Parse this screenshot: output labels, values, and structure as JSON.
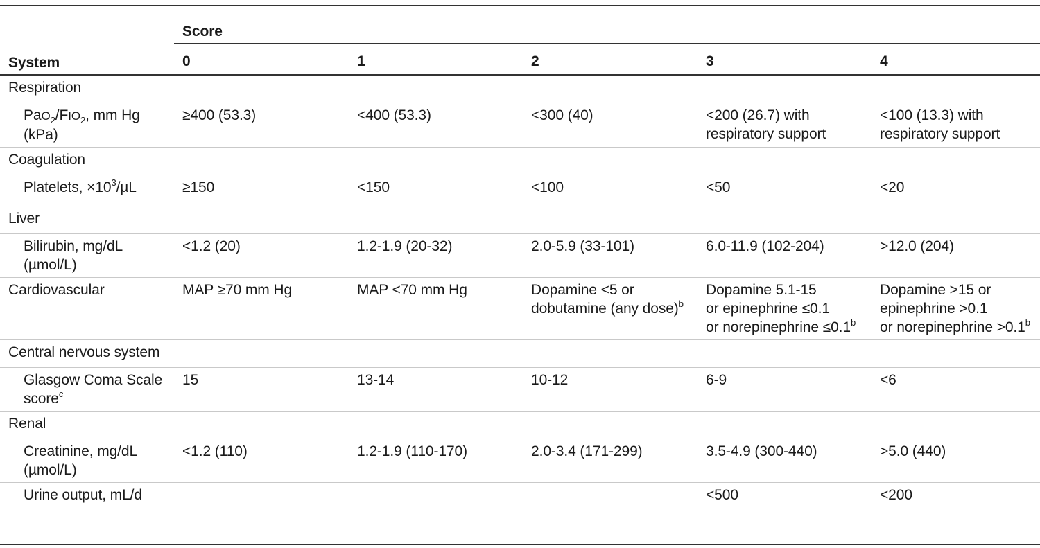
{
  "header": {
    "system": "System",
    "score": "Score",
    "score_values": [
      "0",
      "1",
      "2",
      "3",
      "4"
    ]
  },
  "respiration": {
    "group": "Respiration",
    "label_pa": "Pa",
    "label_o1": "O",
    "label_sub1": "2",
    "label_slash": "/F",
    "label_io": "IO",
    "label_sub2": "2",
    "label_tail": ", mm Hg",
    "label_line2": "(kPa)",
    "values": [
      "≥400 (53.3)",
      "<400 (53.3)",
      "<300 (40)",
      "<200 (26.7) with respiratory support",
      "<100 (13.3) with respiratory support"
    ]
  },
  "coagulation": {
    "group": "Coagulation",
    "label_pre": "Platelets, ×10",
    "label_sup": "3",
    "label_post": "/µL",
    "values": [
      "≥150",
      "<150",
      "<100",
      "<50",
      "<20"
    ]
  },
  "liver": {
    "group": "Liver",
    "label": "Bilirubin, mg/dL",
    "label_line2": "(µmol/L)",
    "values": [
      "<1.2 (20)",
      "1.2-1.9 (20-32)",
      "2.0-5.9 (33-101)",
      "6.0-11.9 (102-204)",
      ">12.0 (204)"
    ]
  },
  "cardiovascular": {
    "group": "Cardiovascular",
    "v0": "MAP ≥70 mm Hg",
    "v1": "MAP <70 mm Hg",
    "v2_line1": "Dopamine <5 or",
    "v2_line2": "dobutamine (any dose)",
    "v2_sup": "b",
    "v3_line1": "Dopamine 5.1-15",
    "v3_line2": "or epinephrine ≤0.1",
    "v3_line3": "or norepinephrine ≤0.1",
    "v3_sup": "b",
    "v4_line1": "Dopamine >15 or",
    "v4_line2": "epinephrine >0.1",
    "v4_line3": "or norepinephrine >0.1",
    "v4_sup": "b"
  },
  "cns": {
    "group": "Central nervous system",
    "label_line1": "Glasgow Coma Scale",
    "label_line2": "score",
    "label_sup": "c",
    "values": [
      "15",
      "13-14",
      "10-12",
      "6-9",
      "<6"
    ]
  },
  "renal": {
    "group": "Renal",
    "creat_label": "Creatinine, mg/dL",
    "creat_label_line2": "(µmol/L)",
    "creat_values": [
      "<1.2 (110)",
      "1.2-1.9 (110-170)",
      "2.0-3.4 (171-299)",
      "3.5-4.9 (300-440)",
      ">5.0 (440)"
    ],
    "urine_label": "Urine output, mL/d",
    "urine_values": [
      "",
      "",
      "",
      "<500",
      "<200"
    ]
  }
}
